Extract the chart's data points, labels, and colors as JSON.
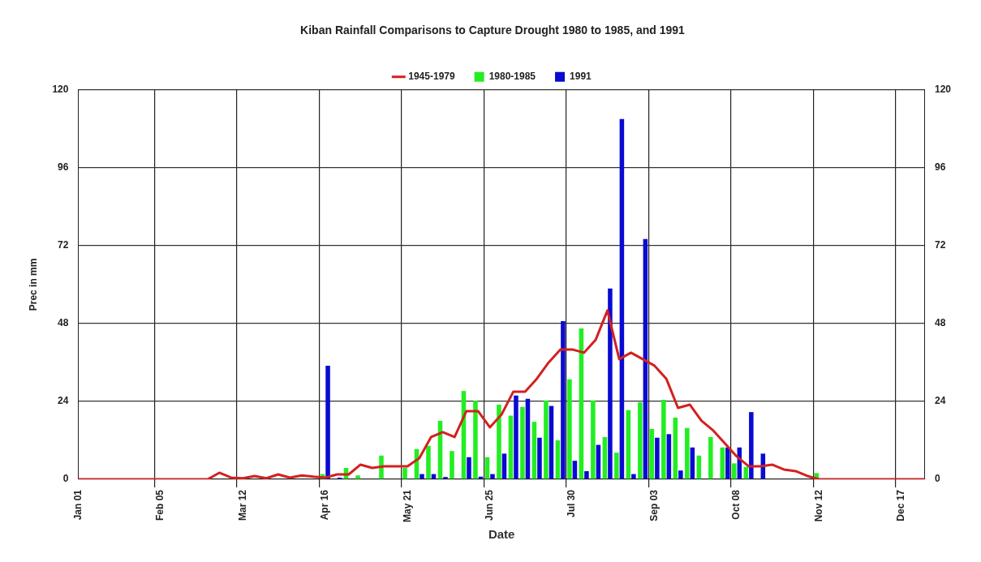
{
  "chart_data": {
    "type": "bar",
    "title": "Kiban Rainfall Comparisons to Capture Drought 1980 to 1985, and 1991",
    "xlabel": "Date",
    "ylabel": "Prec in mm",
    "categories": [
      "Jan 01",
      null,
      null,
      null,
      null,
      null,
      null,
      "Feb 05",
      null,
      null,
      null,
      null,
      null,
      null,
      "Mar 12",
      null,
      null,
      null,
      null,
      null,
      null,
      "Apr 16",
      null,
      null,
      null,
      null,
      null,
      null,
      "May 21",
      null,
      null,
      null,
      null,
      null,
      null,
      "Jun 25",
      null,
      null,
      null,
      null,
      null,
      null,
      "Jul 30",
      null,
      null,
      null,
      null,
      null,
      null,
      "Sep 03",
      null,
      null,
      null,
      null,
      null,
      null,
      "Oct 08",
      null,
      null,
      null,
      null,
      null,
      null,
      "Nov 12",
      null,
      null,
      null,
      null,
      null,
      null,
      "Dec 17",
      null,
      null
    ],
    "series": [
      {
        "name": "1945-1979",
        "type": "line",
        "color": "#d42020",
        "values": [
          0,
          0,
          0,
          0,
          0,
          0,
          0,
          0,
          0,
          0,
          0,
          0,
          2,
          0.5,
          0.3,
          1,
          0.3,
          1.5,
          0.5,
          1.2,
          0.8,
          0.5,
          1.5,
          1.5,
          4.5,
          3.5,
          4,
          4,
          4,
          6.5,
          13,
          14.5,
          13,
          21,
          21,
          16,
          20,
          27,
          27,
          31,
          36,
          40,
          40,
          39,
          43,
          52,
          37,
          39,
          37,
          35,
          31,
          22,
          23,
          18,
          15,
          11,
          7,
          4,
          4,
          4.5,
          3,
          2.5,
          1,
          0,
          0,
          0,
          0,
          0,
          0,
          0,
          0,
          0,
          0
        ]
      },
      {
        "name": "1980-1985",
        "color": "#22ee22",
        "values": [
          null,
          null,
          null,
          null,
          null,
          null,
          null,
          null,
          null,
          null,
          null,
          null,
          null,
          null,
          null,
          null,
          null,
          null,
          null,
          null,
          null,
          1.6,
          null,
          3.5,
          1.2,
          null,
          7.3,
          null,
          3.5,
          9.3,
          10.3,
          18,
          8.7,
          27.2,
          24.2,
          6.8,
          23,
          19.6,
          22.3,
          17.7,
          24.3,
          12,
          30.8,
          46.5,
          24.3,
          13,
          8.2,
          21.3,
          23.7,
          15.5,
          24.5,
          19,
          15.8,
          7.3,
          13,
          9.8,
          4.9,
          3.8,
          null,
          null,
          null,
          null,
          null,
          1.9,
          null,
          null,
          null,
          null,
          null,
          null,
          null,
          null,
          null
        ]
      },
      {
        "name": "1991",
        "color": "#0a0ad2",
        "values": [
          null,
          null,
          null,
          null,
          null,
          null,
          null,
          null,
          null,
          null,
          null,
          null,
          null,
          null,
          null,
          null,
          null,
          null,
          null,
          null,
          null,
          35,
          0.5,
          null,
          null,
          null,
          null,
          null,
          null,
          1.6,
          1.6,
          0.7,
          null,
          6.8,
          0.8,
          1.6,
          7.9,
          25.8,
          24.8,
          12.8,
          22.6,
          48.7,
          5.7,
          2.5,
          10.6,
          58.8,
          111,
          1.6,
          74,
          12.8,
          13.9,
          2.7,
          9.8,
          null,
          null,
          9.8,
          9.8,
          20.7,
          7.9,
          null,
          null,
          null,
          null,
          null,
          null,
          null,
          null,
          null,
          null,
          null,
          null,
          null,
          null
        ]
      }
    ],
    "ylim": [
      0,
      120
    ],
    "yticks": [
      0,
      24,
      48,
      72,
      96,
      120
    ],
    "y2lim": [
      0,
      120
    ],
    "y2ticks": [
      0,
      24,
      48,
      72,
      96,
      120
    ],
    "grid": true,
    "legend": "top",
    "marker": "none"
  }
}
